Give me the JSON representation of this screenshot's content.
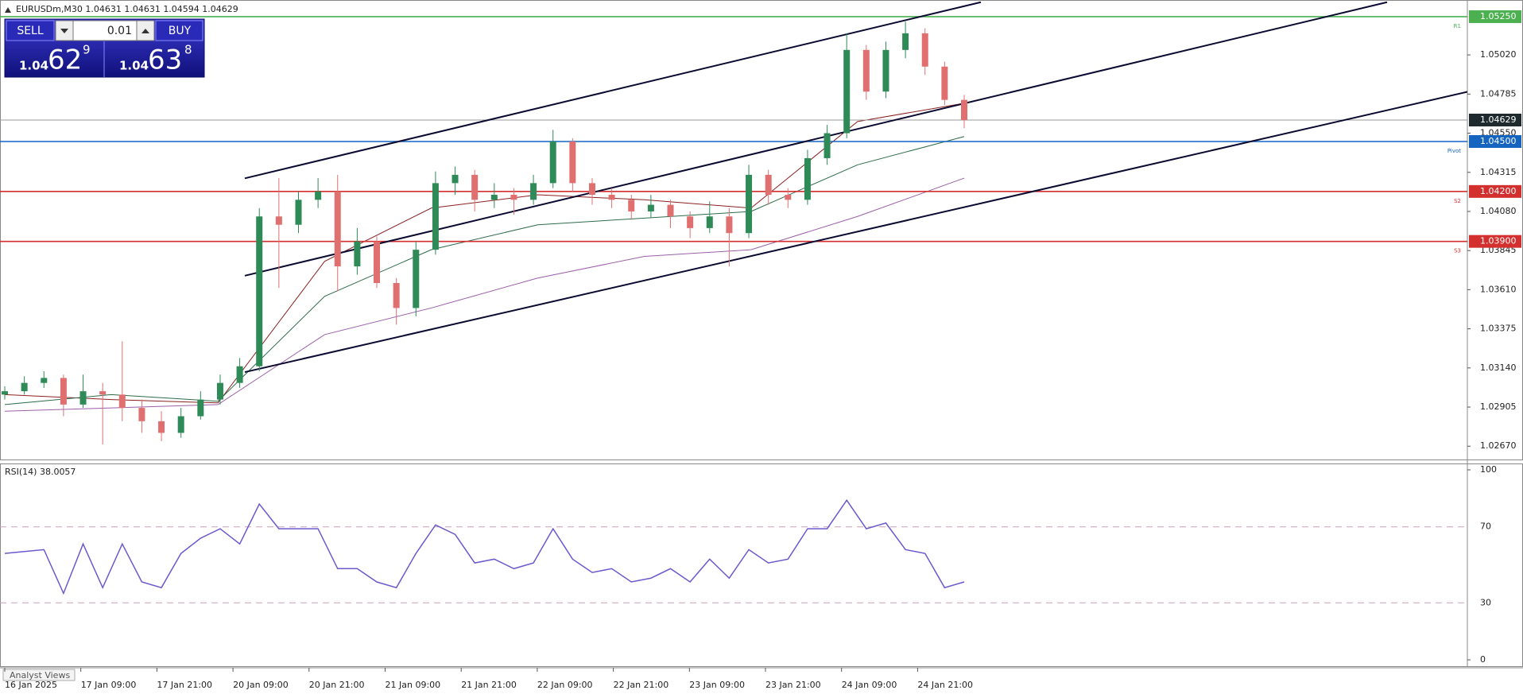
{
  "window_title": "EURUSDm,M30  1.04631 1.04631 1.04594 1.04629",
  "trade_panel": {
    "sell": "SELL",
    "buy": "BUY",
    "lot": "0.01",
    "bid": {
      "big": "1.04",
      "main": "62",
      "frac": "9"
    },
    "ask": {
      "big": "1.04",
      "main": "63",
      "frac": "8"
    }
  },
  "price_chart": {
    "ylim": [
      1.0259,
      1.0535
    ],
    "yticks": [
      {
        "value": 1.0267,
        "label": "1.02670"
      },
      {
        "value": 1.02905,
        "label": "1.02905"
      },
      {
        "value": 1.0314,
        "label": "1.03140"
      },
      {
        "value": 1.03375,
        "label": "1.03375"
      },
      {
        "value": 1.0361,
        "label": "1.03610"
      },
      {
        "value": 1.03845,
        "label": "1.03845"
      },
      {
        "value": 1.0408,
        "label": "1.04080"
      },
      {
        "value": 1.04315,
        "label": "1.04315"
      },
      {
        "value": 1.0455,
        "label": "1.04550"
      },
      {
        "value": 1.04785,
        "label": "1.04785"
      },
      {
        "value": 1.0502,
        "label": "1.05020"
      }
    ],
    "up_color": "#2e8b57",
    "down_color": "#e07070",
    "candles": [
      [
        1.0298,
        1.0303,
        1.0295,
        1.03
      ],
      [
        1.03,
        1.0309,
        1.0298,
        1.0305
      ],
      [
        1.0305,
        1.0312,
        1.0302,
        1.0308
      ],
      [
        1.0308,
        1.031,
        1.0285,
        1.0292
      ],
      [
        1.0292,
        1.031,
        1.029,
        1.03
      ],
      [
        1.03,
        1.0305,
        1.0268,
        1.0298
      ],
      [
        1.0298,
        1.033,
        1.0282,
        1.029
      ],
      [
        1.029,
        1.0295,
        1.0275,
        1.0282
      ],
      [
        1.0282,
        1.0288,
        1.027,
        1.0275
      ],
      [
        1.0275,
        1.029,
        1.0272,
        1.0285
      ],
      [
        1.0285,
        1.03,
        1.0283,
        1.0295
      ],
      [
        1.0295,
        1.031,
        1.0292,
        1.0305
      ],
      [
        1.0305,
        1.032,
        1.0302,
        1.0315
      ],
      [
        1.0315,
        1.041,
        1.0312,
        1.0405
      ],
      [
        1.0405,
        1.0428,
        1.0362,
        1.04
      ],
      [
        1.04,
        1.042,
        1.0395,
        1.0415
      ],
      [
        1.0415,
        1.0428,
        1.041,
        1.042
      ],
      [
        1.042,
        1.043,
        1.036,
        1.0375
      ],
      [
        1.0375,
        1.0398,
        1.037,
        1.039
      ],
      [
        1.039,
        1.0393,
        1.0362,
        1.0365
      ],
      [
        1.0365,
        1.0368,
        1.034,
        1.035
      ],
      [
        1.035,
        1.039,
        1.0345,
        1.0385
      ],
      [
        1.0385,
        1.0432,
        1.0382,
        1.0425
      ],
      [
        1.0425,
        1.0435,
        1.0418,
        1.043
      ],
      [
        1.043,
        1.0433,
        1.0408,
        1.0415
      ],
      [
        1.0415,
        1.0425,
        1.041,
        1.0418
      ],
      [
        1.0418,
        1.0422,
        1.0406,
        1.0415
      ],
      [
        1.0415,
        1.043,
        1.0412,
        1.0425
      ],
      [
        1.0425,
        1.0457,
        1.0422,
        1.045
      ],
      [
        1.045,
        1.0452,
        1.042,
        1.0425
      ],
      [
        1.0425,
        1.0428,
        1.0412,
        1.0418
      ],
      [
        1.0418,
        1.0422,
        1.041,
        1.0415
      ],
      [
        1.0415,
        1.0418,
        1.0403,
        1.0408
      ],
      [
        1.0408,
        1.0418,
        1.0404,
        1.0412
      ],
      [
        1.0412,
        1.0415,
        1.0398,
        1.0405
      ],
      [
        1.0405,
        1.0408,
        1.0392,
        1.0398
      ],
      [
        1.0398,
        1.0414,
        1.0395,
        1.0405
      ],
      [
        1.0405,
        1.041,
        1.0375,
        1.0395
      ],
      [
        1.0395,
        1.0436,
        1.0392,
        1.043
      ],
      [
        1.043,
        1.0433,
        1.0412,
        1.0418
      ],
      [
        1.0418,
        1.0422,
        1.041,
        1.0415
      ],
      [
        1.0415,
        1.0445,
        1.0412,
        1.044
      ],
      [
        1.044,
        1.046,
        1.0436,
        1.0455
      ],
      [
        1.0455,
        1.0515,
        1.0452,
        1.0505
      ],
      [
        1.0505,
        1.0508,
        1.0475,
        1.048
      ],
      [
        1.048,
        1.051,
        1.0476,
        1.0505
      ],
      [
        1.0505,
        1.0522,
        1.05,
        1.0515
      ],
      [
        1.0515,
        1.0518,
        1.049,
        1.0495
      ],
      [
        1.0495,
        1.0498,
        1.0472,
        1.0475
      ],
      [
        1.0475,
        1.0478,
        1.0458,
        1.04629
      ]
    ],
    "moving_averages": [
      {
        "color": "#8b2020",
        "values": [
          1.0298,
          1.0295,
          1.0293,
          1.0378,
          1.041,
          1.0418,
          1.0415,
          1.041,
          1.0462,
          1.0473
        ]
      },
      {
        "color": "#2e6b4a",
        "values": [
          1.0292,
          1.0298,
          1.0294,
          1.0357,
          1.0385,
          1.04,
          1.0404,
          1.0408,
          1.0436,
          1.0453
        ]
      },
      {
        "color": "#9b5fa8",
        "values": [
          1.0288,
          1.029,
          1.0292,
          1.0334,
          1.035,
          1.0368,
          1.0381,
          1.0385,
          1.0405,
          1.0428
        ]
      }
    ],
    "trendlines": [
      [
        1.04279,
        1.05337
      ],
      [
        1.03694,
        1.05337
      ],
      [
        1.03115,
        1.04875
      ]
    ],
    "levels": [
      {
        "value": 1.0525,
        "label": "1.05250",
        "name": "R1",
        "color": "#4caf50"
      },
      {
        "value": 1.045,
        "label": "1.04500",
        "name": "Pivot",
        "color": "#1565c0"
      },
      {
        "value": 1.042,
        "label": "1.04200",
        "name": "S2",
        "color": "#d32f2f"
      },
      {
        "value": 1.039,
        "label": "1.03900",
        "name": "S3",
        "color": "#d32f2f"
      }
    ],
    "current": {
      "value": 1.04629,
      "label": "1.04629"
    }
  },
  "rsi": {
    "title": "RSI(14) 38.0057",
    "ylim": [
      0,
      100
    ],
    "yticks": [
      0,
      30,
      70,
      100
    ],
    "color": "#6a5acd",
    "values": [
      56,
      57,
      58,
      35,
      61,
      38,
      61,
      41,
      38,
      56,
      64,
      69,
      61,
      82,
      69,
      69,
      69,
      48,
      48,
      41,
      38,
      56,
      71,
      66,
      51,
      53,
      48,
      51,
      69,
      53,
      46,
      48,
      41,
      43,
      48,
      41,
      53,
      43,
      58,
      51,
      53,
      69,
      69,
      84,
      69,
      72,
      58,
      56,
      38,
      41
    ]
  },
  "time_axis": [
    "16 Jan 2025",
    "17 Jan 09:00",
    "17 Jan 21:00",
    "20 Jan 09:00",
    "20 Jan 21:00",
    "21 Jan 09:00",
    "21 Jan 21:00",
    "22 Jan 09:00",
    "22 Jan 21:00",
    "23 Jan 09:00",
    "23 Jan 21:00",
    "24 Jan 09:00",
    "24 Jan 21:00"
  ],
  "footer_tab": "Analyst Views"
}
